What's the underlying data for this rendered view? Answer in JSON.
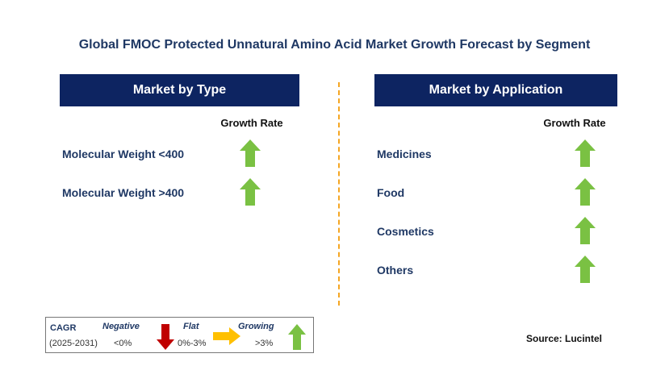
{
  "title": "Global FMOC Protected Unnatural Amino Acid Market Growth Forecast by Segment",
  "left_panel": {
    "header": "Market by Type",
    "growth_label": "Growth Rate",
    "rows": [
      {
        "label": "Molecular Weight <400",
        "trend": "growing"
      },
      {
        "label": "Molecular Weight >400",
        "trend": "growing"
      }
    ]
  },
  "right_panel": {
    "header": "Market by Application",
    "growth_label": "Growth Rate",
    "rows": [
      {
        "label": "Medicines",
        "trend": "growing"
      },
      {
        "label": "Food",
        "trend": "growing"
      },
      {
        "label": "Cosmetics",
        "trend": "growing"
      },
      {
        "label": "Others",
        "trend": "growing"
      }
    ]
  },
  "legend": {
    "cagr": "CAGR",
    "period": "(2025-2031)",
    "negative": "Negative",
    "negative_range": "<0%",
    "flat": "Flat",
    "flat_range": "0%-3%",
    "growing": "Growing",
    "growing_range": ">3%"
  },
  "source": "Source: Lucintel",
  "colors": {
    "header_bg": "#0d2461",
    "growing_arrow": "#7ac143",
    "negative_arrow": "#c00000",
    "flat_arrow": "#ffc000",
    "divider": "#f5a623"
  }
}
